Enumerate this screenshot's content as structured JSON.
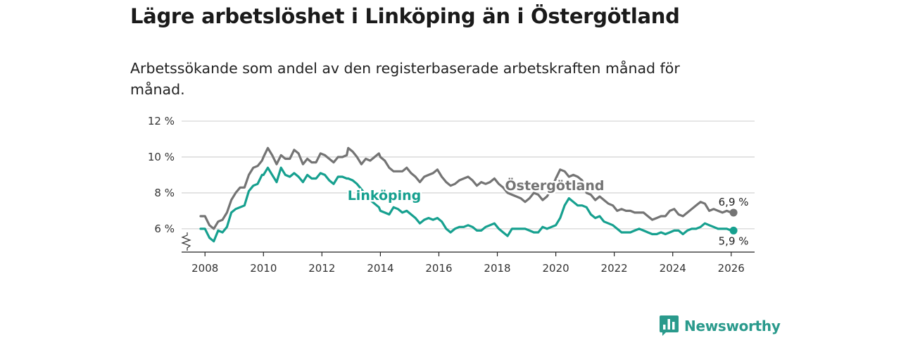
{
  "title": "Lägre arbetslöshet i Linköping än i Östergötland",
  "subtitle": "Arbetssökande som andel av den registerbaserade arbetskraften månad för månad.",
  "brand": {
    "name": "Newsworthy",
    "icon": "newsworthy-logo-icon",
    "color": "#2a9a8c"
  },
  "chart_data": {
    "type": "line",
    "title": "Lägre arbetslöshet i Linköping än i Östergötland",
    "subtitle": "Arbetssökande som andel av den registerbaserade arbetskraften månad för månad.",
    "xlabel": "",
    "ylabel": "",
    "xlim": [
      2007.2,
      2026.8
    ],
    "ylim": [
      4.7,
      12
    ],
    "axis_break": true,
    "grid": true,
    "y_ticks": [
      6,
      8,
      10,
      12
    ],
    "y_tick_labels": [
      "6 %",
      "8 %",
      "10 %",
      "12 %"
    ],
    "x_ticks": [
      2008,
      2010,
      2012,
      2014,
      2016,
      2018,
      2020,
      2022,
      2024,
      2026
    ],
    "x_tick_labels": [
      "2008",
      "2010",
      "2012",
      "2014",
      "2016",
      "2018",
      "2020",
      "2022",
      "2024",
      "2026"
    ],
    "series": [
      {
        "name": "Östergötland",
        "color": "#747474",
        "end_label": "6,9 %",
        "x": [
          2007.85,
          2008.0,
          2008.15,
          2008.3,
          2008.45,
          2008.6,
          2008.75,
          2008.9,
          2009.05,
          2009.2,
          2009.35,
          2009.5,
          2009.65,
          2009.8,
          2009.95,
          2010.0,
          2010.15,
          2010.3,
          2010.45,
          2010.6,
          2010.75,
          2010.9,
          2011.05,
          2011.2,
          2011.35,
          2011.5,
          2011.65,
          2011.8,
          2011.95,
          2012.1,
          2012.25,
          2012.4,
          2012.55,
          2012.7,
          2012.85,
          2012.9,
          2013.05,
          2013.2,
          2013.35,
          2013.5,
          2013.65,
          2013.8,
          2013.95,
          2014.0,
          2014.15,
          2014.3,
          2014.45,
          2014.6,
          2014.75,
          2014.9,
          2015.05,
          2015.2,
          2015.35,
          2015.5,
          2015.65,
          2015.8,
          2015.95,
          2016.1,
          2016.25,
          2016.4,
          2016.55,
          2016.7,
          2016.85,
          2017.0,
          2017.15,
          2017.3,
          2017.45,
          2017.6,
          2017.75,
          2017.9,
          2018.05,
          2018.2,
          2018.35,
          2018.5,
          2018.65,
          2018.8,
          2018.95,
          2019.1,
          2019.25,
          2019.4,
          2019.55,
          2019.7,
          2019.85,
          2020.0,
          2020.15,
          2020.3,
          2020.45,
          2020.6,
          2020.75,
          2020.9,
          2021.05,
          2021.2,
          2021.35,
          2021.5,
          2021.65,
          2021.8,
          2021.95,
          2022.1,
          2022.25,
          2022.4,
          2022.55,
          2022.7,
          2022.85,
          2023.0,
          2023.15,
          2023.3,
          2023.45,
          2023.6,
          2023.75,
          2023.9,
          2024.05,
          2024.2,
          2024.35,
          2024.5,
          2024.65,
          2024.8,
          2024.95,
          2025.1,
          2025.25,
          2025.4,
          2025.55,
          2025.7,
          2025.85,
          2026.0,
          2026.08
        ],
        "y": [
          6.7,
          6.7,
          6.2,
          6.0,
          6.4,
          6.5,
          6.9,
          7.6,
          8.0,
          8.3,
          8.3,
          9.0,
          9.4,
          9.5,
          9.8,
          10.0,
          10.5,
          10.1,
          9.6,
          10.1,
          9.9,
          9.9,
          10.4,
          10.2,
          9.6,
          9.9,
          9.7,
          9.7,
          10.2,
          10.1,
          9.9,
          9.7,
          10.0,
          10.0,
          10.1,
          10.5,
          10.3,
          10.0,
          9.6,
          9.9,
          9.8,
          10.0,
          10.2,
          10.0,
          9.8,
          9.4,
          9.2,
          9.2,
          9.2,
          9.4,
          9.1,
          8.9,
          8.6,
          8.9,
          9.0,
          9.1,
          9.3,
          8.9,
          8.6,
          8.4,
          8.5,
          8.7,
          8.8,
          8.9,
          8.7,
          8.4,
          8.6,
          8.5,
          8.6,
          8.8,
          8.5,
          8.3,
          8.0,
          7.9,
          7.8,
          7.7,
          7.5,
          7.7,
          8.0,
          7.9,
          7.6,
          7.8,
          8.2,
          8.8,
          9.3,
          9.2,
          8.9,
          9.0,
          8.9,
          8.7,
          8.0,
          7.9,
          7.6,
          7.8,
          7.6,
          7.4,
          7.3,
          7.0,
          7.1,
          7.0,
          7.0,
          6.9,
          6.9,
          6.9,
          6.7,
          6.5,
          6.6,
          6.7,
          6.7,
          7.0,
          7.1,
          6.8,
          6.7,
          6.9,
          7.1,
          7.3,
          7.5,
          7.4,
          7.0,
          7.1,
          7.0,
          6.9,
          7.0,
          6.9,
          6.9
        ]
      },
      {
        "name": "Linköping",
        "color": "#16a08f",
        "end_label": "5,9 %",
        "x": [
          2007.85,
          2008.0,
          2008.15,
          2008.3,
          2008.45,
          2008.6,
          2008.75,
          2008.9,
          2009.05,
          2009.2,
          2009.35,
          2009.5,
          2009.65,
          2009.8,
          2009.95,
          2010.0,
          2010.15,
          2010.3,
          2010.45,
          2010.6,
          2010.75,
          2010.9,
          2011.05,
          2011.2,
          2011.35,
          2011.5,
          2011.65,
          2011.8,
          2011.95,
          2012.1,
          2012.25,
          2012.4,
          2012.55,
          2012.7,
          2012.85,
          2012.9,
          2013.05,
          2013.2,
          2013.35,
          2013.5,
          2013.65,
          2013.8,
          2013.95,
          2014.0,
          2014.15,
          2014.3,
          2014.45,
          2014.6,
          2014.75,
          2014.9,
          2015.05,
          2015.2,
          2015.35,
          2015.5,
          2015.65,
          2015.8,
          2015.95,
          2016.1,
          2016.25,
          2016.4,
          2016.55,
          2016.7,
          2016.85,
          2017.0,
          2017.15,
          2017.3,
          2017.45,
          2017.6,
          2017.75,
          2017.9,
          2018.05,
          2018.2,
          2018.35,
          2018.5,
          2018.65,
          2018.8,
          2018.95,
          2019.1,
          2019.25,
          2019.4,
          2019.55,
          2019.7,
          2019.85,
          2020.0,
          2020.15,
          2020.3,
          2020.45,
          2020.6,
          2020.75,
          2020.9,
          2021.05,
          2021.2,
          2021.35,
          2021.5,
          2021.65,
          2021.8,
          2021.95,
          2022.1,
          2022.25,
          2022.4,
          2022.55,
          2022.7,
          2022.85,
          2023.0,
          2023.15,
          2023.3,
          2023.45,
          2023.6,
          2023.75,
          2023.9,
          2024.05,
          2024.2,
          2024.35,
          2024.5,
          2024.65,
          2024.8,
          2024.95,
          2025.1,
          2025.25,
          2025.4,
          2025.55,
          2025.7,
          2025.85,
          2026.0,
          2026.08
        ],
        "y": [
          6.0,
          6.0,
          5.5,
          5.3,
          5.9,
          5.8,
          6.1,
          6.9,
          7.1,
          7.2,
          7.3,
          8.1,
          8.4,
          8.5,
          9.0,
          9.0,
          9.4,
          9.0,
          8.6,
          9.4,
          9.0,
          8.9,
          9.1,
          8.9,
          8.6,
          9.0,
          8.8,
          8.8,
          9.1,
          9.0,
          8.7,
          8.5,
          8.9,
          8.9,
          8.8,
          8.8,
          8.7,
          8.5,
          8.2,
          7.9,
          7.6,
          7.4,
          7.2,
          7.0,
          6.9,
          6.8,
          7.2,
          7.1,
          6.9,
          7.0,
          6.8,
          6.6,
          6.3,
          6.5,
          6.6,
          6.5,
          6.6,
          6.4,
          6.0,
          5.8,
          6.0,
          6.1,
          6.1,
          6.2,
          6.1,
          5.9,
          5.9,
          6.1,
          6.2,
          6.3,
          6.0,
          5.8,
          5.6,
          6.0,
          6.0,
          6.0,
          6.0,
          5.9,
          5.8,
          5.8,
          6.1,
          6.0,
          6.1,
          6.2,
          6.6,
          7.3,
          7.7,
          7.5,
          7.3,
          7.3,
          7.2,
          6.8,
          6.6,
          6.7,
          6.4,
          6.3,
          6.2,
          6.0,
          5.8,
          5.8,
          5.8,
          5.9,
          6.0,
          5.9,
          5.8,
          5.7,
          5.7,
          5.8,
          5.7,
          5.8,
          5.9,
          5.9,
          5.7,
          5.9,
          6.0,
          6.0,
          6.1,
          6.3,
          6.2,
          6.1,
          6.0,
          6.0,
          6.0,
          5.9,
          5.9
        ]
      }
    ]
  }
}
